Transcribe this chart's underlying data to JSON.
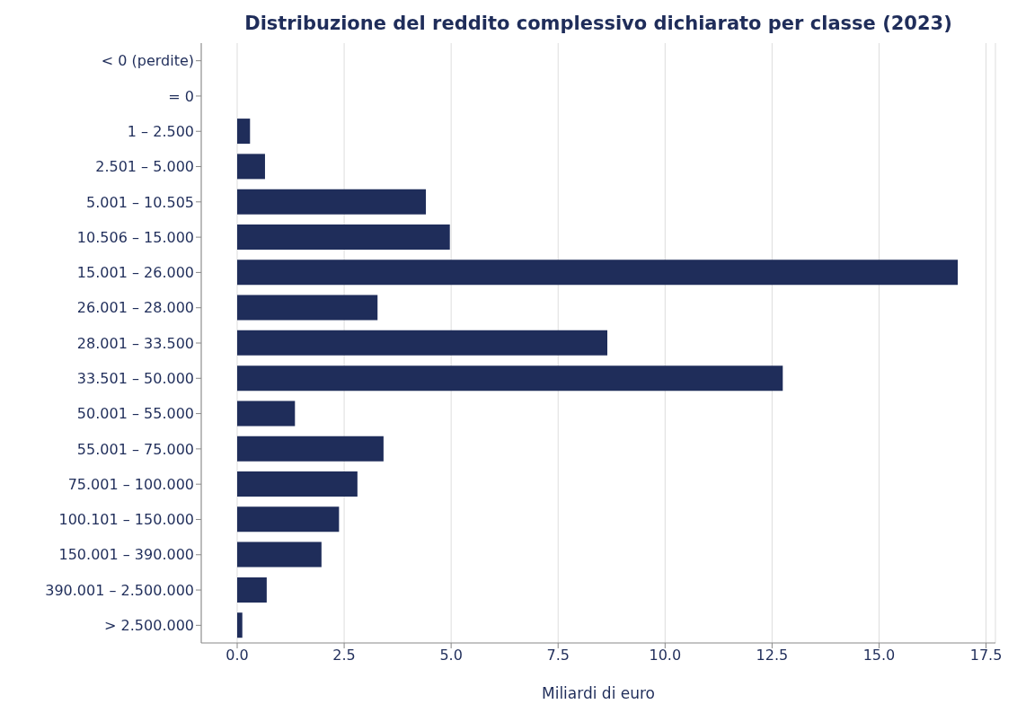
{
  "chart_data": {
    "type": "bar",
    "orientation": "horizontal",
    "title": "Distribuzione del reddito complessivo dichiarato per classe (2023)",
    "xlabel": "Miliardi di euro",
    "categories": [
      "< 0 (perdite)",
      "= 0",
      "1 – 2.500",
      "2.501 – 5.000",
      "5.001 – 10.505",
      "10.506 – 15.000",
      "15.001 – 26.000",
      "26.001 – 28.000",
      "28.001 – 33.500",
      "33.501 – 50.000",
      "50.001 – 55.000",
      "55.001 – 75.000",
      "75.001 – 100.000",
      "100.101 – 150.000",
      "150.001 – 390.000",
      "390.001 – 2.500.000",
      "> 2.500.000"
    ],
    "values": [
      0,
      0,
      0.3,
      0.65,
      4.41,
      4.97,
      16.84,
      3.28,
      8.65,
      12.75,
      1.35,
      3.42,
      2.81,
      2.38,
      1.97,
      0.69,
      0.12
    ],
    "color": "#1f2d5a",
    "xlim": [
      -0.84,
      17.72
    ],
    "xticks": [
      {
        "value": 0,
        "label": "0.0"
      },
      2.5,
      {
        "value": 5,
        "label": "5.0"
      },
      7.5,
      {
        "value": 10,
        "label": "10.0"
      },
      12.5,
      {
        "value": 15,
        "label": "15.0"
      },
      17.5
    ],
    "grid": "x"
  }
}
